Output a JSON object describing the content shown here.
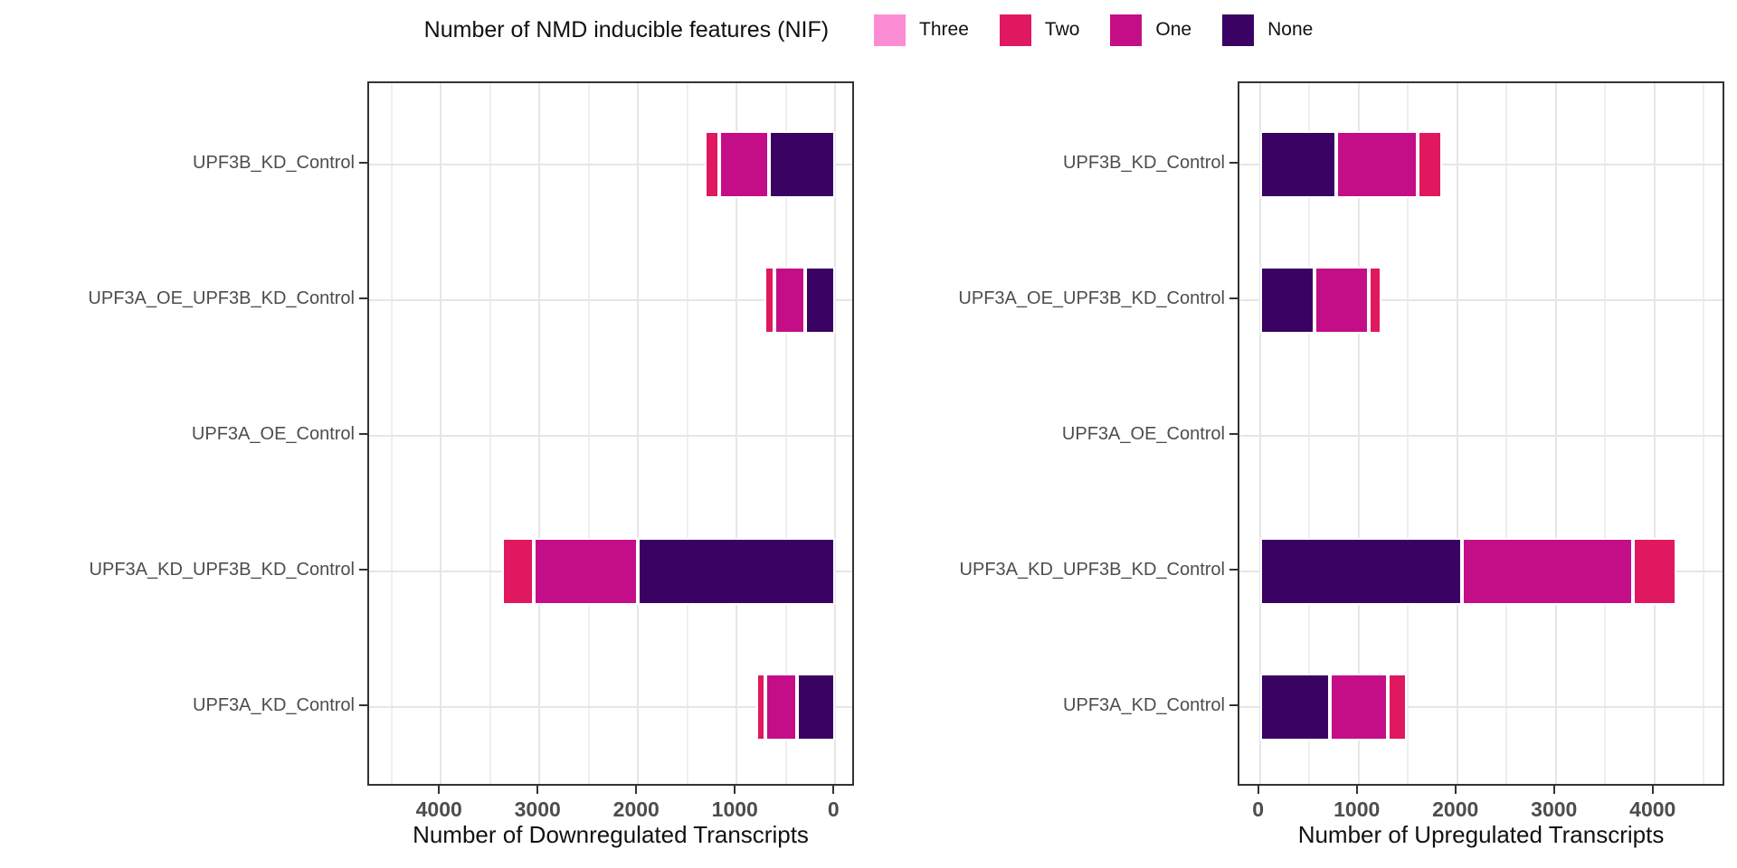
{
  "legend": {
    "title": "Number of NMD inducible features (NIF)",
    "items": [
      {
        "label": "Three",
        "color": "#FC8CD4"
      },
      {
        "label": "Two",
        "color": "#E0185F"
      },
      {
        "label": "One",
        "color": "#C40E87"
      },
      {
        "label": "None",
        "color": "#3A0263"
      }
    ]
  },
  "chart_data": [
    {
      "type": "bar",
      "orientation": "horizontal",
      "stacked": true,
      "reversed_axis": true,
      "xlabel": "Number of Downregulated Transcripts",
      "x_ticks": [
        0,
        1000,
        2000,
        3000,
        4000
      ],
      "xlim": [
        0,
        4500
      ],
      "grid": "on",
      "categories": [
        "UPF3B_KD_Control",
        "UPF3A_OE_UPF3B_KD_Control",
        "UPF3A_OE_Control",
        "UPF3A_KD_UPF3B_KD_Control",
        "UPF3A_KD_Control"
      ],
      "series": [
        {
          "name": "None",
          "color": "#3A0263",
          "values": [
            675,
            310,
            0,
            2000,
            390
          ]
        },
        {
          "name": "One",
          "color": "#C40E87",
          "values": [
            500,
            305,
            0,
            1055,
            315
          ]
        },
        {
          "name": "Two",
          "color": "#E0185F",
          "values": [
            145,
            105,
            0,
            320,
            100
          ]
        },
        {
          "name": "Three",
          "color": "#FC8CD4",
          "values": [
            0,
            0,
            0,
            0,
            0
          ]
        }
      ]
    },
    {
      "type": "bar",
      "orientation": "horizontal",
      "stacked": true,
      "reversed_axis": false,
      "xlabel": "Number of Upregulated Transcripts",
      "x_ticks": [
        0,
        1000,
        2000,
        3000,
        4000
      ],
      "xlim": [
        0,
        4500
      ],
      "grid": "on",
      "categories": [
        "UPF3B_KD_Control",
        "UPF3A_OE_UPF3B_KD_Control",
        "UPF3A_OE_Control",
        "UPF3A_KD_UPF3B_KD_Control",
        "UPF3A_KD_Control"
      ],
      "series": [
        {
          "name": "None",
          "color": "#3A0263",
          "values": [
            770,
            550,
            0,
            2050,
            710
          ]
        },
        {
          "name": "One",
          "color": "#C40E87",
          "values": [
            830,
            550,
            0,
            1730,
            590
          ]
        },
        {
          "name": "Two",
          "color": "#E0185F",
          "values": [
            245,
            135,
            0,
            440,
            185
          ]
        },
        {
          "name": "Three",
          "color": "#FC8CD4",
          "values": [
            0,
            0,
            0,
            0,
            0
          ]
        }
      ]
    }
  ]
}
